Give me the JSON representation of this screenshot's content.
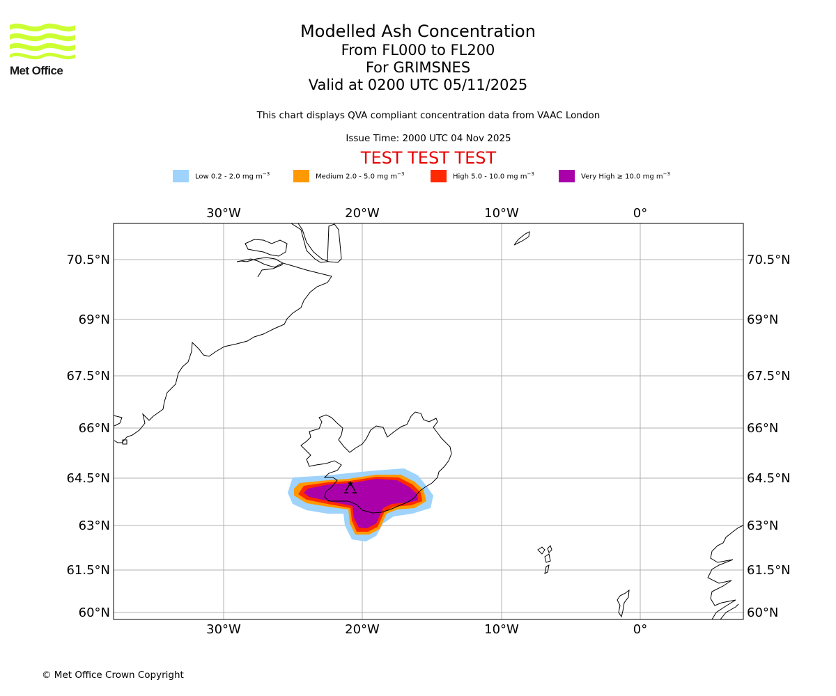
{
  "logo": {
    "text": "Met Office",
    "icon": "met-office-wave-logo",
    "color": "#ccff33"
  },
  "title": {
    "line1": "Modelled Ash Concentration",
    "line2": "From FL000 to FL200",
    "line3": "For GRIMSNES",
    "line4": "Valid at 0200 UTC 05/11/2025"
  },
  "info": "This chart displays QVA compliant concentration data from VAAC London",
  "issue_time": "Issue Time: 2000 UTC 04 Nov 2025",
  "test_banner": "TEST TEST TEST",
  "legend": {
    "unit_sup": "−3",
    "items": [
      {
        "label": "Low 0.2 - 2.0 mg m",
        "color": "#9fd3fb"
      },
      {
        "label": "Medium 2.0 - 5.0 mg m",
        "color": "#ff9900"
      },
      {
        "label": "High 5.0 - 10.0 mg m",
        "color": "#ff2a00"
      },
      {
        "label": "Very High ≥ 10.0 mg m",
        "color": "#aa00aa"
      }
    ]
  },
  "map": {
    "extent": {
      "lon": [
        -38,
        7.5
      ],
      "lat": [
        59.8,
        71.5
      ]
    },
    "lon_ticks": [
      {
        "value": -30,
        "label": "30°W"
      },
      {
        "value": -20,
        "label": "20°W"
      },
      {
        "value": -10,
        "label": "10°W"
      },
      {
        "value": 0,
        "label": "0°"
      }
    ],
    "lat_ticks": [
      {
        "value": 70.5,
        "label": "70.5°N"
      },
      {
        "value": 69,
        "label": "69°N"
      },
      {
        "value": 67.5,
        "label": "67.5°N"
      },
      {
        "value": 66,
        "label": "66°N"
      },
      {
        "value": 64.5,
        "label": "64.5°N"
      },
      {
        "value": 63,
        "label": "63°N"
      },
      {
        "value": 61.5,
        "label": "61.5°N"
      },
      {
        "value": 60,
        "label": "60°N"
      }
    ],
    "grid": true,
    "gridline_color": "#b0b0b0"
  },
  "copyright": "© Met Office Crown Copyright"
}
